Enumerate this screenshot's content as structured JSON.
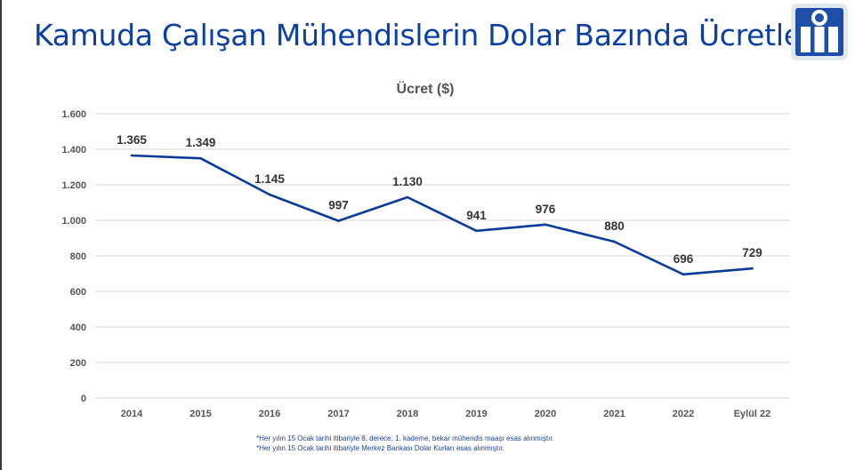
{
  "title": "Kamuda Çalışan Mühendislerin Dolar Bazında Ücretleri",
  "logo": {
    "icon": "chamber-logo-icon",
    "color": "#1d4fa8"
  },
  "colors": {
    "title": "#0b3fa3",
    "series": "#0a3a9a",
    "axis_text": "#555555",
    "label_text": "#333333"
  },
  "chart_data": {
    "type": "line",
    "title": "Ücret ($)",
    "categories": [
      "2014",
      "2015",
      "2016",
      "2017",
      "2018",
      "2019",
      "2020",
      "2021",
      "2022",
      "Eylül 22"
    ],
    "values": [
      1365,
      1349,
      1145,
      997,
      1130,
      941,
      976,
      880,
      696,
      729
    ],
    "data_labels": [
      "1.365",
      "1.349",
      "1.145",
      "997",
      "1.130",
      "941",
      "976",
      "880",
      "696",
      "729"
    ],
    "y_ticks": [
      0,
      200,
      400,
      600,
      800,
      1000,
      1200,
      1400,
      1600
    ],
    "y_tick_labels": [
      "0",
      "200",
      "400",
      "600",
      "800",
      "1.000",
      "1.200",
      "1.400",
      "1.600"
    ],
    "ylim": [
      0,
      1600
    ],
    "grid": true,
    "xlabel": "",
    "ylabel": ""
  },
  "footnotes": [
    "*Her yılın 15 Ocak tarihi itibariyle 8. derece, 1. kademe, bekar mühendis maaşı esas alınmıştır.",
    "*Her yılın 15 Ocak tarihi itibariyle Merkez Bankası Dolar Kurları esas alınmıştır."
  ]
}
